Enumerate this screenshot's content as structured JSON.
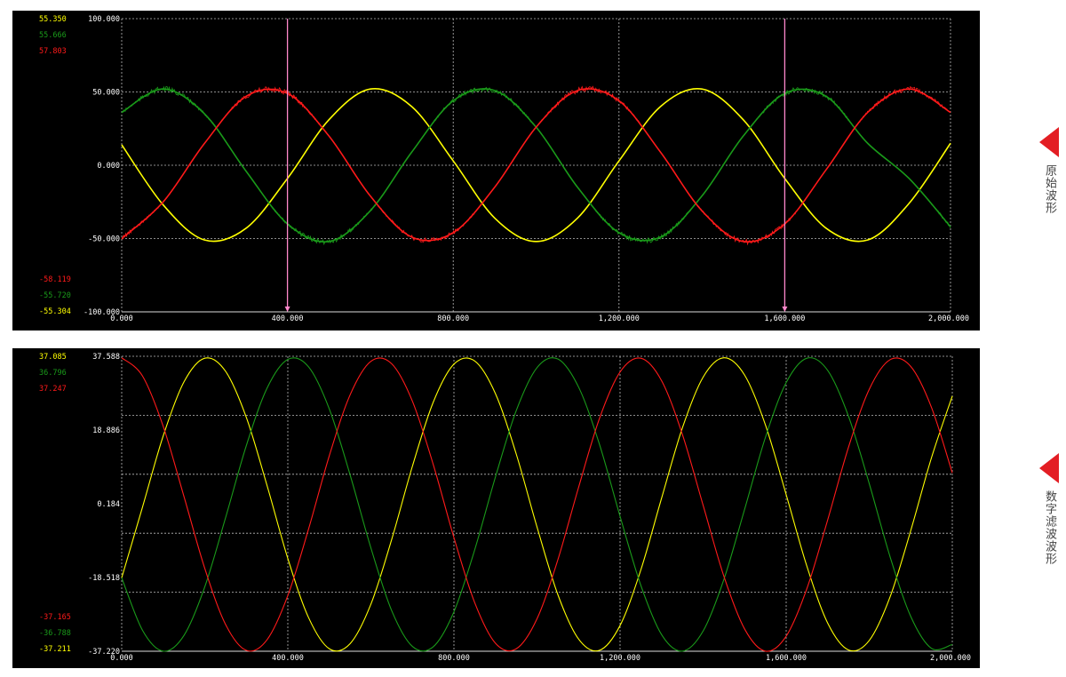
{
  "colors": {
    "yellow": "#ffff00",
    "green": "#1a9a1a",
    "red": "#ff1a1a",
    "grid": "#bbbbbb",
    "axis_text": "#ffffff",
    "cursor": "#ff88cc",
    "side_arrow": "#e31e24"
  },
  "side_labels": [
    {
      "text": "原始波形"
    },
    {
      "text": "数字滤波波形"
    }
  ],
  "chart_data": [
    {
      "type": "line",
      "title": "",
      "xlim": [
        0,
        2000
      ],
      "ylim": [
        -100,
        100
      ],
      "yticks": [
        {
          "v": 100,
          "label": "100.000"
        },
        {
          "v": 50,
          "label": "50.000"
        },
        {
          "v": 0,
          "label": "0.000"
        },
        {
          "v": -50,
          "label": "-50.000"
        },
        {
          "v": -100,
          "label": "-100.000"
        }
      ],
      "ygrid": [
        100,
        50,
        0,
        -50,
        -100
      ],
      "xticks": [
        {
          "v": 0,
          "label": "0.000"
        },
        {
          "v": 400,
          "label": "400.000"
        },
        {
          "v": 800,
          "label": "800.000"
        },
        {
          "v": 1200,
          "label": "1,200.000"
        },
        {
          "v": 1600,
          "label": "1,600.000"
        },
        {
          "v": 2000,
          "label": "2,000.000"
        }
      ],
      "cursors": [
        400,
        1600
      ],
      "noisy": true,
      "max_readouts": [
        {
          "text": "55.350",
          "series": "yellow"
        },
        {
          "text": "55.666",
          "series": "green"
        },
        {
          "text": "57.803",
          "series": "red"
        }
      ],
      "min_readouts": [
        {
          "text": "-58.119",
          "series": "red"
        },
        {
          "text": "-55.720",
          "series": "green"
        },
        {
          "text": "-55.304",
          "series": "yellow"
        }
      ],
      "x": [
        0,
        100,
        200,
        300,
        400,
        500,
        600,
        700,
        800,
        900,
        1000,
        1100,
        1200,
        1300,
        1400,
        1500,
        1600,
        1700,
        1800,
        1900,
        2000
      ],
      "series": [
        {
          "color": "yellow",
          "values": [
            14,
            -27,
            -51,
            -43,
            -9,
            31,
            52,
            40,
            3,
            -36,
            -52,
            -36,
            3,
            40,
            52,
            31,
            -9,
            -43,
            -51,
            -26,
            15
          ]
        },
        {
          "color": "green",
          "values": [
            36,
            52,
            35,
            -4,
            -40,
            -52,
            -31,
            9,
            44,
            51,
            26,
            -15,
            -46,
            -49,
            -21,
            20,
            49,
            47,
            15,
            -9,
            -42
          ]
        },
        {
          "color": "red",
          "values": [
            -50,
            -25,
            15,
            47,
            49,
            20,
            -21,
            -49,
            -46,
            -15,
            26,
            51,
            44,
            9,
            -31,
            -52,
            -40,
            -3,
            36,
            52,
            36
          ]
        }
      ]
    },
    {
      "type": "line",
      "title": "",
      "xlim": [
        0,
        2000
      ],
      "ylim": [
        -37.22,
        37.588
      ],
      "yticks": [
        {
          "v": 37.588,
          "label": "37.588"
        },
        {
          "v": 18.886,
          "label": "18.886"
        },
        {
          "v": 0.184,
          "label": "0.184"
        },
        {
          "v": -18.518,
          "label": "-18.518"
        },
        {
          "v": -37.22,
          "label": "-37.220"
        }
      ],
      "ygrid": [
        37.588,
        22.626,
        7.665,
        -7.297,
        -22.258,
        -37.22
      ],
      "xticks": [
        {
          "v": 0,
          "label": "0.000"
        },
        {
          "v": 400,
          "label": "400.000"
        },
        {
          "v": 800,
          "label": "800.000"
        },
        {
          "v": 1200,
          "label": "1,200.000"
        },
        {
          "v": 1600,
          "label": "1,600.000"
        },
        {
          "v": 2000,
          "label": "2,000.000"
        }
      ],
      "cursors": [],
      "noisy": false,
      "max_readouts": [
        {
          "text": "37.085",
          "series": "yellow"
        },
        {
          "text": "36.796",
          "series": "green"
        },
        {
          "text": "37.247",
          "series": "red"
        }
      ],
      "min_readouts": [
        {
          "text": "-37.165",
          "series": "red"
        },
        {
          "text": "-36.788",
          "series": "green"
        },
        {
          "text": "-37.211",
          "series": "yellow"
        }
      ],
      "x": [
        0,
        50,
        100,
        150,
        200,
        250,
        300,
        350,
        400,
        450,
        500,
        550,
        600,
        650,
        700,
        750,
        800,
        850,
        900,
        950,
        1000,
        1050,
        1100,
        1150,
        1200,
        1250,
        1300,
        1350,
        1400,
        1450,
        1500,
        1550,
        1600,
        1650,
        1700,
        1750,
        1800,
        1850,
        1900,
        1950,
        2000
      ],
      "series": [
        {
          "color": "yellow",
          "values": [
            -18.6,
            -0.7,
            17.4,
            31.1,
            37.1,
            33.8,
            22.1,
            4.8,
            -13.7,
            -28.7,
            -36.6,
            -35.3,
            -25.3,
            -8.9,
            9.7,
            25.9,
            35.6,
            36.4,
            28.1,
            12.8,
            -5.7,
            -22.8,
            -34.1,
            -37.0,
            -30.7,
            -16.6,
            1.6,
            19.4,
            32.3,
            37.2,
            32.8,
            20.2,
            2.5,
            -15.7,
            -30.1,
            -36.9,
            -34.5,
            -23.5,
            -6.6,
            11.9,
            27.5
          ]
        },
        {
          "color": "green",
          "values": [
            -18.6,
            -31.9,
            -37.2,
            -33.2,
            -20.9,
            -3.4,
            14.9,
            29.5,
            36.8,
            34.9,
            24.2,
            7.5,
            -11.0,
            -26.9,
            -36.0,
            -36.1,
            -27.2,
            -11.5,
            7.0,
            23.8,
            34.7,
            36.9,
            29.8,
            15.4,
            -3.0,
            -20.5,
            -33.0,
            -37.2,
            -32.1,
            -19.0,
            -1.2,
            17.0,
            30.9,
            37.1,
            34.0,
            22.4,
            5.3,
            -13.2,
            -28.4,
            -36.5,
            -35.5
          ]
        },
        {
          "color": "red",
          "values": [
            37.2,
            32.6,
            19.8,
            2.0,
            -16.2,
            -30.4,
            -37.0,
            -34.3,
            -23.1,
            -6.2,
            12.4,
            27.8,
            36.3,
            35.7,
            26.2,
            10.2,
            -8.4,
            -24.9,
            -35.2,
            -36.6,
            -29.0,
            -14.1,
            4.3,
            21.7,
            33.6,
            37.1,
            31.4,
            17.8,
            -0.2,
            -18.2,
            -31.6,
            -37.2,
            -33.4,
            -21.3,
            -3.9,
            14.5,
            29.2,
            36.7,
            35.0,
            24.6,
            8.0
          ]
        }
      ]
    }
  ]
}
